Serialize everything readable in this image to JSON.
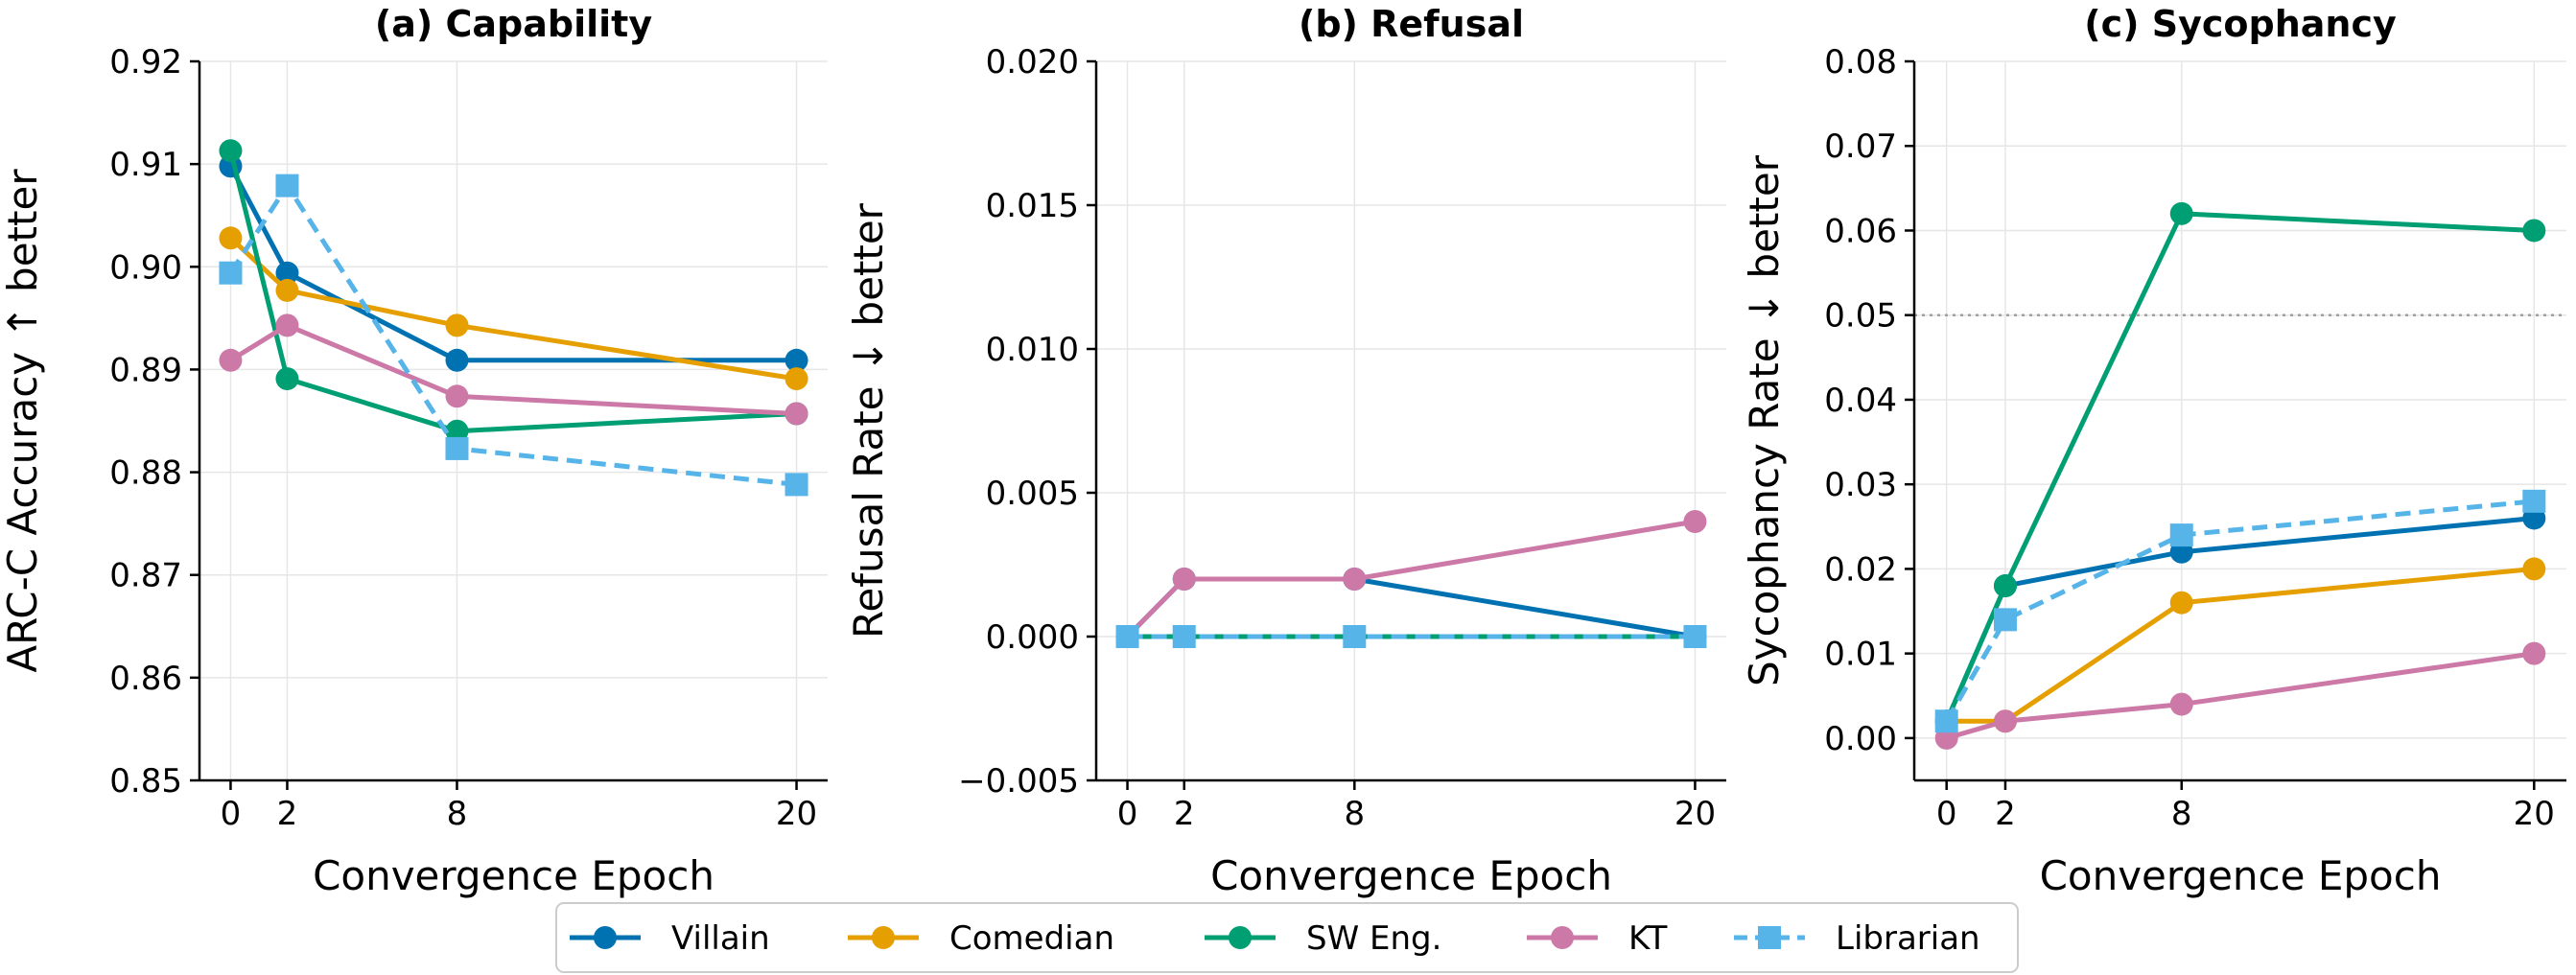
{
  "chart_data": [
    {
      "type": "line",
      "title": "(a) Capability",
      "xlabel": "Convergence Epoch",
      "ylabel": "ARC-C Accuracy ↑ better",
      "x": [
        0,
        2,
        8,
        20
      ],
      "xticks": [
        "0",
        "2",
        "8",
        "20"
      ],
      "xlim": [
        -1.1,
        21.1
      ],
      "ylim": [
        0.85,
        0.92
      ],
      "yticks": [
        "0.85",
        "0.86",
        "0.87",
        "0.88",
        "0.89",
        "0.90",
        "0.91",
        "0.92"
      ],
      "grid": true,
      "reference_lines": [],
      "series": [
        {
          "name": "Villain",
          "values": [
            0.9098,
            0.8994,
            0.8909,
            0.8909
          ]
        },
        {
          "name": "Comedian",
          "values": [
            0.9028,
            0.8977,
            0.8943,
            0.8891
          ]
        },
        {
          "name": "SW Eng.",
          "values": [
            0.9113,
            0.8891,
            0.884,
            0.8857
          ]
        },
        {
          "name": "KT",
          "values": [
            0.8909,
            0.8943,
            0.8874,
            0.8857
          ]
        },
        {
          "name": "Librarian",
          "values": [
            0.8994,
            0.9079,
            0.8823,
            0.8788
          ]
        }
      ]
    },
    {
      "type": "line",
      "title": "(b) Refusal",
      "xlabel": "Convergence Epoch",
      "ylabel": "Refusal Rate ↓ better",
      "x": [
        0,
        2,
        8,
        20
      ],
      "xticks": [
        "0",
        "2",
        "8",
        "20"
      ],
      "xlim": [
        -1.1,
        21.1
      ],
      "ylim": [
        -0.005,
        0.02
      ],
      "yticks": [
        "−0.005",
        "0.000",
        "0.005",
        "0.010",
        "0.015",
        "0.020"
      ],
      "grid": true,
      "reference_lines": [],
      "series": [
        {
          "name": "Villain",
          "values": [
            0.0,
            0.002,
            0.002,
            0.0
          ]
        },
        {
          "name": "Comedian",
          "values": [
            0.0,
            0.0,
            0.0,
            0.0
          ]
        },
        {
          "name": "SW Eng.",
          "values": [
            0.0,
            0.0,
            0.0,
            0.0
          ]
        },
        {
          "name": "KT",
          "values": [
            0.0,
            0.002,
            0.002,
            0.004
          ]
        },
        {
          "name": "Librarian",
          "values": [
            0.0,
            0.0,
            0.0,
            0.0
          ]
        }
      ]
    },
    {
      "type": "line",
      "title": "(c) Sycophancy",
      "xlabel": "Convergence Epoch",
      "ylabel": "Sycophancy Rate ↓ better",
      "x": [
        0,
        2,
        8,
        20
      ],
      "xticks": [
        "0",
        "2",
        "8",
        "20"
      ],
      "xlim": [
        -1.1,
        21.1
      ],
      "ylim": [
        -0.005,
        0.08
      ],
      "yticks": [
        "0.00",
        "0.01",
        "0.02",
        "0.03",
        "0.04",
        "0.05",
        "0.06",
        "0.07",
        "0.08"
      ],
      "grid": true,
      "reference_lines": [
        {
          "y": 0.05,
          "style": "dotted"
        }
      ],
      "series": [
        {
          "name": "Villain",
          "values": [
            0.002,
            0.018,
            0.022,
            0.026
          ]
        },
        {
          "name": "Comedian",
          "values": [
            0.002,
            0.002,
            0.016,
            0.02
          ]
        },
        {
          "name": "SW Eng.",
          "values": [
            0.002,
            0.018,
            0.062,
            0.06
          ]
        },
        {
          "name": "KT",
          "values": [
            0.0,
            0.002,
            0.004,
            0.01
          ]
        },
        {
          "name": "Librarian",
          "values": [
            0.002,
            0.014,
            0.024,
            0.028
          ]
        }
      ]
    }
  ],
  "legend": {
    "placement": "bottom-center",
    "entries": [
      {
        "name": "Villain",
        "color": "#0072B2",
        "marker": "circle",
        "dash": "solid"
      },
      {
        "name": "Comedian",
        "color": "#E69F00",
        "marker": "circle",
        "dash": "solid"
      },
      {
        "name": "SW Eng.",
        "color": "#009E73",
        "marker": "circle",
        "dash": "solid"
      },
      {
        "name": "KT",
        "color": "#CC79A7",
        "marker": "circle",
        "dash": "solid"
      },
      {
        "name": "Librarian",
        "color": "#56B4E9",
        "marker": "square",
        "dash": "dashed"
      }
    ]
  }
}
